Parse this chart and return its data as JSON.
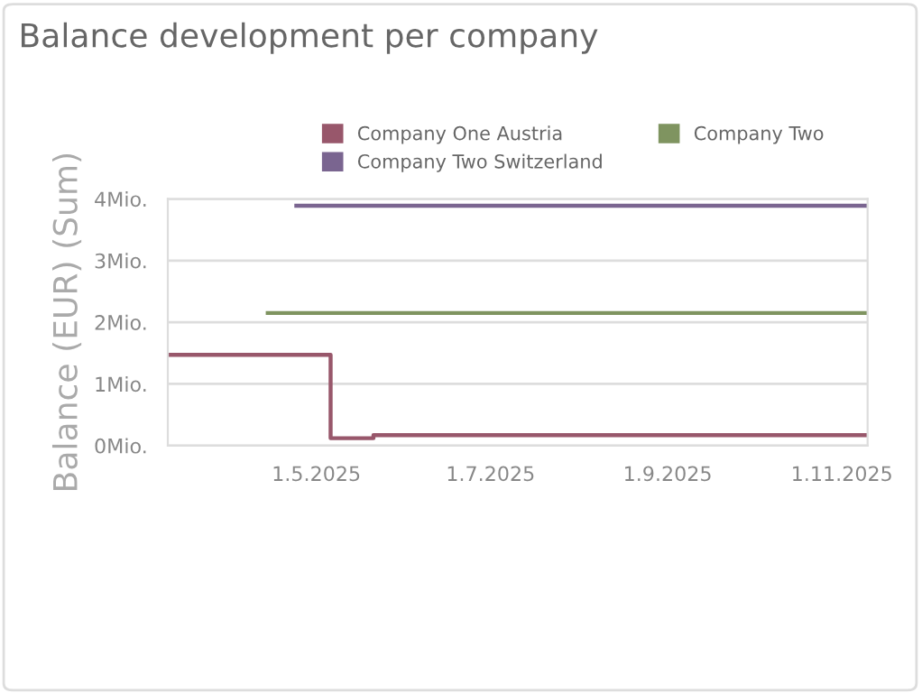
{
  "chart_data": {
    "type": "step",
    "title": "Balance development per company",
    "ylabel": "Balance (EUR) (Sum)",
    "series": [
      {
        "name": "Company One Austria",
        "color": "#98576b",
        "x": [
          "2025-03-10",
          "2025-05-06",
          "2025-05-21",
          "2025-11-10"
        ],
        "values": [
          1.47,
          0.12,
          0.17,
          0.17
        ]
      },
      {
        "name": "Company Two",
        "color": "#7f9460",
        "x": [
          "2025-04-14",
          "2025-11-10"
        ],
        "values": [
          2.15,
          2.15
        ]
      },
      {
        "name": "Company Two Switzerland",
        "color": "#7a6590",
        "x": [
          "2025-04-24",
          "2025-11-10"
        ],
        "values": [
          3.89,
          3.89
        ]
      }
    ],
    "xlim": [
      "2025-03-10",
      "2025-11-10"
    ],
    "xticks": [
      {
        "value": "2025-05-01",
        "label": "1.5.2025"
      },
      {
        "value": "2025-07-01",
        "label": "1.7.2025"
      },
      {
        "value": "2025-09-01",
        "label": "1.9.2025"
      },
      {
        "value": "2025-11-01",
        "label": "1.11.2025"
      }
    ],
    "ylim": [
      0,
      4
    ],
    "yticks": [
      {
        "value": 0,
        "label": "0Mio."
      },
      {
        "value": 1,
        "label": "1Mio."
      },
      {
        "value": 2,
        "label": "2Mio."
      },
      {
        "value": 3,
        "label": "3Mio."
      },
      {
        "value": 4,
        "label": "4Mio."
      }
    ],
    "grid": "y",
    "legend": "top",
    "marker": "none",
    "line_style": "solid"
  }
}
